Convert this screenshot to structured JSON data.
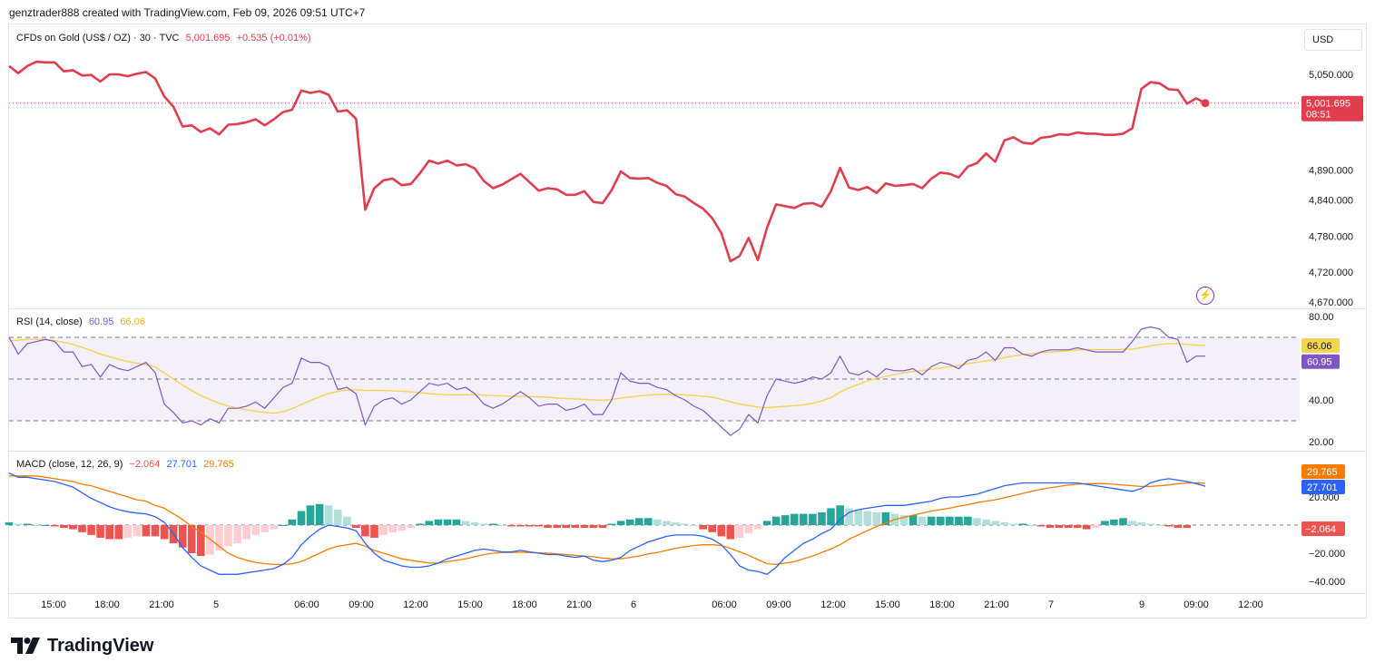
{
  "header": {
    "credit": "genztrader888 created with TradingView.com, Feb 09, 2026 09:51 UTC+7"
  },
  "price_legend": {
    "symbol": "CFDs on Gold (US$ / OZ) · 30 · TVC",
    "price": "5,001.695",
    "change": "+0.535 (+0.01%)"
  },
  "rsi_legend": {
    "label": "RSI (14, close)",
    "rsi": "60.95",
    "ma": "66.06"
  },
  "macd_legend": {
    "label": "MACD (close, 12, 26, 9)",
    "hist": "−2.064",
    "macd": "27.701",
    "signal": "29.765"
  },
  "currency": "USD",
  "price_tag": {
    "value": "5,001.695",
    "countdown": "08:51"
  },
  "brand": "TradingView",
  "colors": {
    "price_line": "#e03e4e",
    "rsi": "#7e57c2",
    "rsi_ma": "#f5d44f",
    "macd": "#2962ff",
    "signal": "#f57c00",
    "hist_up": "#26a69a",
    "hist_up_light": "#b2dfdb",
    "hist_dn": "#ef5350",
    "hist_dn_light": "#ffcdd2"
  },
  "chart_data": [
    {
      "type": "line",
      "title": "CFDs on Gold (US$ / OZ) · 30 · TVC",
      "y_axis_labels": [
        "5,050.000",
        "4,890.000",
        "4,840.000",
        "4,780.000",
        "4,720.000",
        "4,670.000"
      ],
      "x_axis_labels": [
        "15:00",
        "18:00",
        "21:00",
        "5",
        "06:00",
        "09:00",
        "12:00",
        "15:00",
        "18:00",
        "21:00",
        "6",
        "06:00",
        "09:00",
        "12:00",
        "15:00",
        "18:00",
        "21:00",
        "7",
        "9",
        "09:00",
        "12:00"
      ],
      "series": [
        {
          "values": [
            5064,
            5052,
            5064,
            5071,
            5070,
            5070,
            5055,
            5057,
            5048,
            5049,
            5038,
            5050,
            5050,
            5047,
            5051,
            5054,
            5043,
            5013,
            4996,
            4963,
            4965,
            4954,
            4960,
            4950,
            4966,
            4967,
            4970,
            4975,
            4965,
            4975,
            4987,
            4991,
            5023,
            5019,
            5022,
            5016,
            4988,
            4990,
            4976,
            4824,
            4860,
            4873,
            4876,
            4865,
            4867,
            4885,
            4906,
            4901,
            4906,
            4898,
            4900,
            4893,
            4872,
            4860,
            4866,
            4875,
            4884,
            4870,
            4856,
            4860,
            4858,
            4849,
            4849,
            4855,
            4837,
            4835,
            4857,
            4888,
            4877,
            4876,
            4877,
            4869,
            4864,
            4850,
            4846,
            4835,
            4826,
            4810,
            4785,
            4738,
            4747,
            4777,
            4740,
            4794,
            4833,
            4830,
            4827,
            4834,
            4835,
            4829,
            4855,
            4894,
            4861,
            4857,
            4862,
            4852,
            4868,
            4864,
            4865,
            4867,
            4860,
            4876,
            4886,
            4884,
            4878,
            4896,
            4902,
            4918,
            4904,
            4940,
            4945,
            4936,
            4934,
            4944,
            4946,
            4950,
            4949,
            4953,
            4951,
            4951,
            4949,
            4949,
            4951,
            4960,
            5026,
            5037,
            5035,
            5025,
            5024,
            5001,
            5010,
            5002
          ]
        }
      ]
    },
    {
      "type": "line",
      "title": "RSI (14, close)",
      "y_axis_labels": [
        "80.00",
        "40.00",
        "20.00"
      ],
      "ylim": [
        20,
        80
      ],
      "bands": [
        30,
        50,
        70
      ],
      "series": [
        {
          "name": "RSI",
          "values": [
            70,
            62,
            67,
            68,
            69,
            68,
            63,
            63,
            56,
            57,
            51,
            57,
            55,
            54,
            56,
            58,
            53,
            38,
            34,
            29,
            30,
            28,
            31,
            29,
            36,
            36,
            37,
            39,
            36,
            41,
            46,
            48,
            60,
            58,
            58,
            56,
            45,
            46,
            43,
            28,
            37,
            40,
            41,
            38,
            40,
            44,
            48,
            47,
            48,
            45,
            46,
            43,
            38,
            36,
            38,
            41,
            44,
            41,
            37,
            38,
            38,
            35,
            36,
            38,
            33,
            33,
            40,
            53,
            49,
            48,
            48,
            46,
            45,
            42,
            40,
            37,
            35,
            31,
            27,
            23,
            26,
            33,
            29,
            42,
            50,
            49,
            48,
            49,
            51,
            50,
            53,
            61,
            53,
            52,
            54,
            51,
            55,
            54,
            54,
            55,
            52,
            56,
            58,
            57,
            55,
            59,
            60,
            63,
            59,
            65,
            65,
            62,
            61,
            63,
            64,
            64,
            64,
            65,
            64,
            63,
            63,
            63,
            63,
            68,
            74,
            75,
            74,
            70,
            69,
            58,
            61,
            61
          ]
        },
        {
          "name": "RSI-MA",
          "values": [
            68.3,
            68.7,
            69.0,
            69.1,
            68.9,
            68.5,
            67.6,
            66.6,
            65.2,
            63.7,
            62.0,
            60.7,
            59.5,
            58.4,
            57.6,
            57.0,
            55.8,
            52.9,
            50.1,
            47.1,
            44.5,
            42.1,
            40.2,
            38.4,
            37.1,
            36.0,
            35.3,
            34.6,
            34.0,
            33.6,
            34.4,
            35.8,
            37.8,
            39.7,
            41.5,
            43.1,
            44.1,
            44.8,
            44.9,
            44.6,
            44.5,
            44.5,
            44.3,
            44.2,
            43.9,
            43.5,
            43.0,
            42.7,
            42.5,
            42.4,
            42.5,
            42.5,
            42.3,
            42.1,
            42.0,
            41.8,
            41.7,
            41.6,
            41.5,
            41.3,
            40.9,
            40.7,
            40.5,
            40.2,
            40.0,
            39.9,
            40.2,
            40.9,
            41.4,
            41.9,
            42.3,
            42.6,
            42.7,
            42.6,
            42.4,
            42.2,
            41.8,
            41.3,
            40.3,
            39.1,
            38.1,
            37.3,
            36.6,
            36.3,
            36.6,
            36.9,
            37.2,
            37.7,
            38.4,
            39.5,
            41.1,
            43.8,
            45.8,
            47.5,
            49.1,
            50.3,
            51.3,
            52.2,
            53.0,
            53.6,
            54.0,
            54.7,
            55.3,
            56.0,
            56.5,
            57.4,
            58.1,
            58.8,
            59.4,
            60.3,
            61.1,
            61.8,
            62.1,
            62.6,
            63.0,
            63.3,
            63.6,
            63.9,
            64.1,
            64.1,
            64.1,
            64.1,
            64.2,
            64.4,
            65.1,
            65.9,
            66.6,
            66.9,
            67.1,
            66.6,
            66.3,
            66.06
          ]
        }
      ]
    },
    {
      "type": "bar",
      "title": "MACD (close, 12, 26, 9)",
      "y_axis_labels": [
        "20.000",
        "−20.000",
        "−40.000"
      ],
      "ylim": [
        -52,
        48
      ],
      "series": [
        {
          "name": "MACD",
          "values": [
            37,
            34,
            34,
            33,
            32,
            31,
            29,
            27,
            23,
            19,
            16,
            13,
            11,
            9.5,
            8.5,
            8,
            6,
            2,
            -6,
            -16,
            -23,
            -29,
            -32,
            -35,
            -35,
            -35,
            -34,
            -33,
            -32,
            -31,
            -28,
            -23,
            -14,
            -8,
            -3,
            0,
            -1,
            -2,
            -4,
            -13,
            -20,
            -25,
            -27,
            -29,
            -30,
            -30,
            -29,
            -27,
            -24,
            -22,
            -20,
            -18,
            -17,
            -18,
            -19,
            -19,
            -18,
            -19,
            -20,
            -21,
            -21,
            -22,
            -23,
            -22,
            -25,
            -26,
            -25,
            -23,
            -18,
            -15,
            -12,
            -10,
            -8,
            -7,
            -7,
            -7,
            -8,
            -10,
            -14,
            -21,
            -29,
            -32,
            -33,
            -35,
            -30,
            -23,
            -18,
            -13,
            -10,
            -6,
            -3,
            4,
            9,
            11,
            12,
            13,
            14,
            14,
            14,
            15,
            16,
            17,
            19,
            20,
            20,
            21,
            22,
            24,
            26,
            28,
            29,
            30,
            30,
            30,
            30,
            30,
            30,
            30,
            29,
            28,
            27,
            26,
            25,
            24,
            26,
            30,
            32,
            33,
            32,
            31,
            29.5,
            27.701
          ]
        },
        {
          "name": "Signal",
          "values": [
            35,
            35,
            35,
            35,
            34,
            33,
            32,
            31,
            29,
            28,
            26,
            24,
            22,
            20,
            18,
            17,
            14,
            12,
            8,
            4,
            -1,
            -5,
            -10,
            -15,
            -20,
            -23,
            -25,
            -26.5,
            -27.5,
            -28,
            -28,
            -27.5,
            -26,
            -23,
            -20,
            -17,
            -15,
            -14,
            -13,
            -15,
            -18,
            -20,
            -22,
            -24,
            -25,
            -26,
            -27,
            -27,
            -26,
            -25,
            -24,
            -22.5,
            -21,
            -20,
            -19.5,
            -19.5,
            -19.3,
            -19.5,
            -19.8,
            -20,
            -20.5,
            -21,
            -21.5,
            -22,
            -22.5,
            -23.5,
            -24,
            -24,
            -23,
            -22,
            -20.5,
            -19.5,
            -18,
            -16.5,
            -15.5,
            -14.5,
            -14,
            -14,
            -14.5,
            -16.5,
            -19,
            -21.5,
            -24.5,
            -27.5,
            -28,
            -27,
            -26,
            -24,
            -22,
            -19.5,
            -17,
            -14,
            -10,
            -7,
            -4,
            -1,
            1.5,
            4,
            5.5,
            7,
            8.5,
            10,
            11,
            12,
            13.5,
            14.5,
            16,
            17,
            18,
            19.5,
            21,
            22.5,
            24,
            25.5,
            26.5,
            27.5,
            28.5,
            29,
            29.5,
            29.5,
            29.5,
            29,
            28.5,
            28,
            27.5,
            27.5,
            28,
            28.5,
            29.5,
            30,
            30,
            29.765
          ]
        },
        {
          "name": "Histogram",
          "values": [
            2,
            1,
            1,
            0,
            0,
            -1,
            -2,
            -3,
            -5,
            -7,
            -9,
            -10,
            -10,
            -9,
            -8,
            -8,
            -8,
            -10,
            -13,
            -16,
            -20,
            -22,
            -21,
            -18,
            -15,
            -13,
            -10,
            -7,
            -5,
            -3,
            0,
            4,
            10,
            14,
            15,
            14,
            11,
            6,
            -2,
            -8,
            -9,
            -7,
            -5,
            -4,
            -2,
            1,
            3,
            4,
            4,
            4,
            3,
            2,
            1,
            1,
            0,
            -1,
            -1,
            -1,
            -1,
            -2,
            -2,
            -2,
            -2,
            -2,
            -2,
            -2,
            1,
            3,
            4,
            5,
            5,
            4,
            3,
            2,
            1,
            0,
            -3,
            -5,
            -8,
            -10,
            -9,
            -6,
            -3,
            3,
            6,
            7,
            8,
            8,
            8,
            9,
            12,
            14,
            12,
            11,
            10,
            9,
            9,
            8,
            7,
            7,
            6,
            6,
            6,
            6,
            6,
            6,
            5,
            4,
            3,
            2,
            1,
            1,
            0,
            -1,
            -2,
            -2,
            -2,
            -2,
            -3,
            -2,
            3,
            4,
            5,
            3,
            2,
            1,
            0,
            -1,
            -2,
            -2.064
          ]
        }
      ]
    }
  ]
}
